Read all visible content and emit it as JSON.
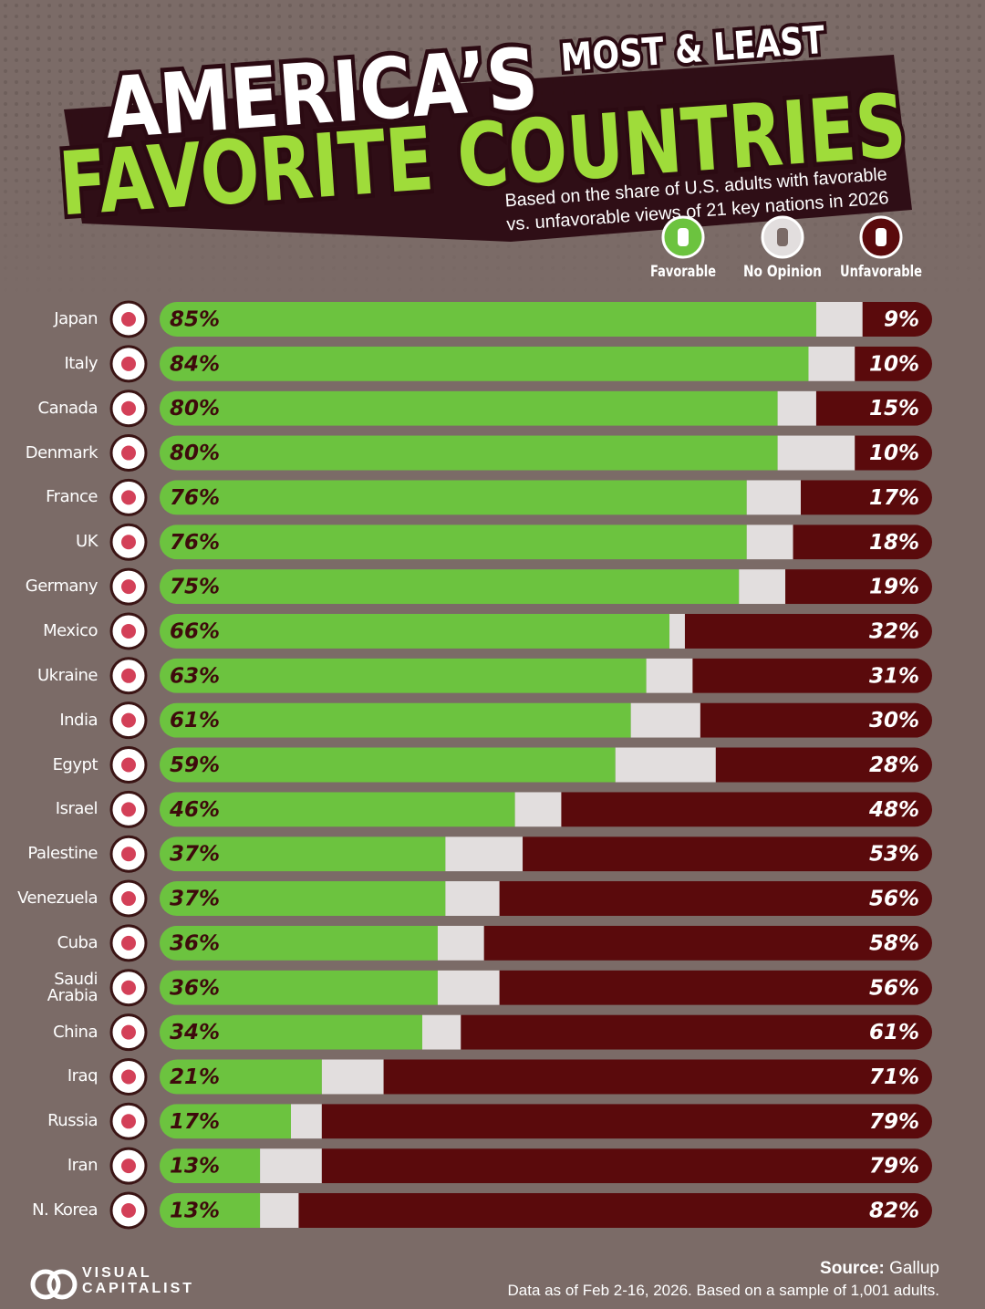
{
  "chart_data": {
    "type": "bar",
    "orientation": "horizontal",
    "stacked": true,
    "title_lead": "AMERICA’S",
    "title_tag": "MOST & LEAST",
    "title_main": "FAVORITE COUNTRIES",
    "subtitle": [
      "Based on the share of U.S. adults with favorable",
      "vs. unfavorable views of 21 key nations in 2026"
    ],
    "categories": [
      "Japan",
      "Italy",
      "Canada",
      "Denmark",
      "France",
      "UK",
      "Germany",
      "Mexico",
      "Ukraine",
      "India",
      "Egypt",
      "Israel",
      "Palestine",
      "Venezuela",
      "Cuba",
      "Saudi\nArabia",
      "China",
      "Iraq",
      "Russia",
      "Iran",
      "N. Korea"
    ],
    "xlim": [
      0,
      100
    ],
    "series": [
      {
        "name": "Favorable",
        "color": "#6cc33f",
        "values": [
          85,
          84,
          80,
          80,
          76,
          76,
          75,
          66,
          63,
          61,
          59,
          46,
          37,
          37,
          36,
          36,
          34,
          21,
          17,
          13,
          13
        ],
        "value_labels": [
          "85%",
          "84%",
          "80%",
          "80%",
          "76%",
          "76%",
          "75%",
          "66%",
          "63%",
          "61%",
          "59%",
          "46%",
          "37%",
          "37%",
          "36%",
          "36%",
          "34%",
          "21%",
          "17%",
          "13%",
          "13%"
        ]
      },
      {
        "name": "No Opinion",
        "color": "#e2dede",
        "values": [
          6,
          6,
          5,
          10,
          7,
          6,
          6,
          2,
          6,
          9,
          13,
          6,
          10,
          7,
          6,
          8,
          5,
          8,
          4,
          8,
          5
        ]
      },
      {
        "name": "Unfavorable",
        "color": "#5a0a0c",
        "values": [
          9,
          10,
          15,
          10,
          17,
          18,
          19,
          32,
          31,
          30,
          28,
          48,
          53,
          56,
          58,
          56,
          61,
          71,
          79,
          79,
          82
        ],
        "value_labels": [
          "9%",
          "10%",
          "15%",
          "10%",
          "17%",
          "18%",
          "19%",
          "32%",
          "31%",
          "30%",
          "28%",
          "48%",
          "53%",
          "56%",
          "58%",
          "56%",
          "61%",
          "71%",
          "79%",
          "79%",
          "82%"
        ]
      }
    ],
    "brand": [
      "VISUAL",
      "CAPITALIST"
    ],
    "source_label": "Source:",
    "source": "Gallup",
    "note": "Data as of Feb 2-16, 2026. Based on a sample of 1,001 adults."
  }
}
